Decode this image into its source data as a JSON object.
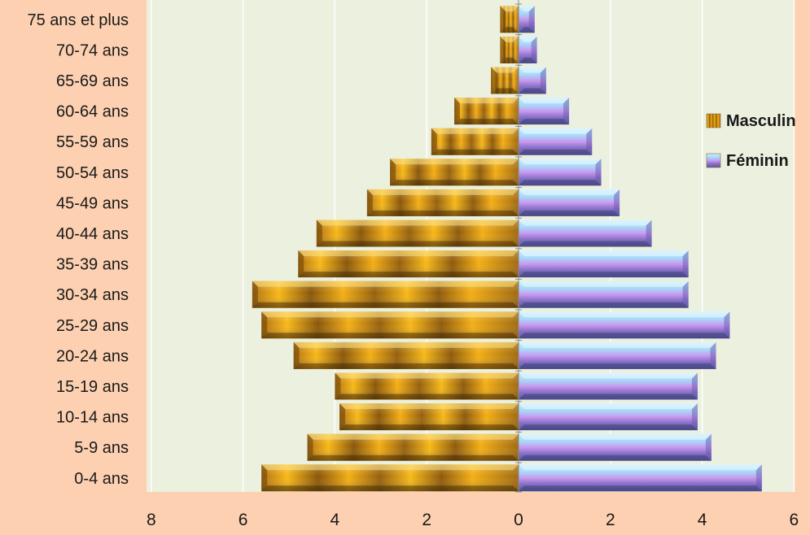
{
  "chart_data": {
    "type": "bar",
    "orientation": "horizontal",
    "layout": "population-pyramid",
    "categories": [
      "75 ans et plus",
      "70-74 ans",
      "65-69 ans",
      "60-64 ans",
      "55-59 ans",
      "50-54 ans",
      "45-49 ans",
      "40-44 ans",
      "35-39 ans",
      "30-34 ans",
      "25-29 ans",
      "20-24 ans",
      "15-19 ans",
      "10-14 ans",
      "5-9 ans",
      "0-4 ans"
    ],
    "series": [
      {
        "name": "Masculin",
        "side": "left",
        "color": "#d08a10",
        "values": [
          0.4,
          0.4,
          0.6,
          1.4,
          1.9,
          2.8,
          3.3,
          4.4,
          4.8,
          5.8,
          5.6,
          4.9,
          4.0,
          3.9,
          4.6,
          5.6
        ]
      },
      {
        "name": "Féminin",
        "side": "right",
        "color": "#b89ae0",
        "values": [
          0.35,
          0.4,
          0.6,
          1.1,
          1.6,
          1.8,
          2.2,
          2.9,
          3.7,
          3.7,
          4.6,
          4.3,
          3.9,
          3.9,
          4.2,
          5.3
        ]
      }
    ],
    "xlim": [
      -8,
      6
    ],
    "xticks": [
      -8,
      -6,
      -4,
      -2,
      0,
      2,
      4,
      6
    ],
    "xtick_labels": [
      "8",
      "6",
      "4",
      "2",
      "0",
      "2",
      "4",
      "6"
    ],
    "title": "",
    "xlabel": "",
    "ylabel": "",
    "grid": "vertical",
    "legend": "right",
    "plot_background": "#ecf0df",
    "page_background": "#fcd0b0"
  }
}
